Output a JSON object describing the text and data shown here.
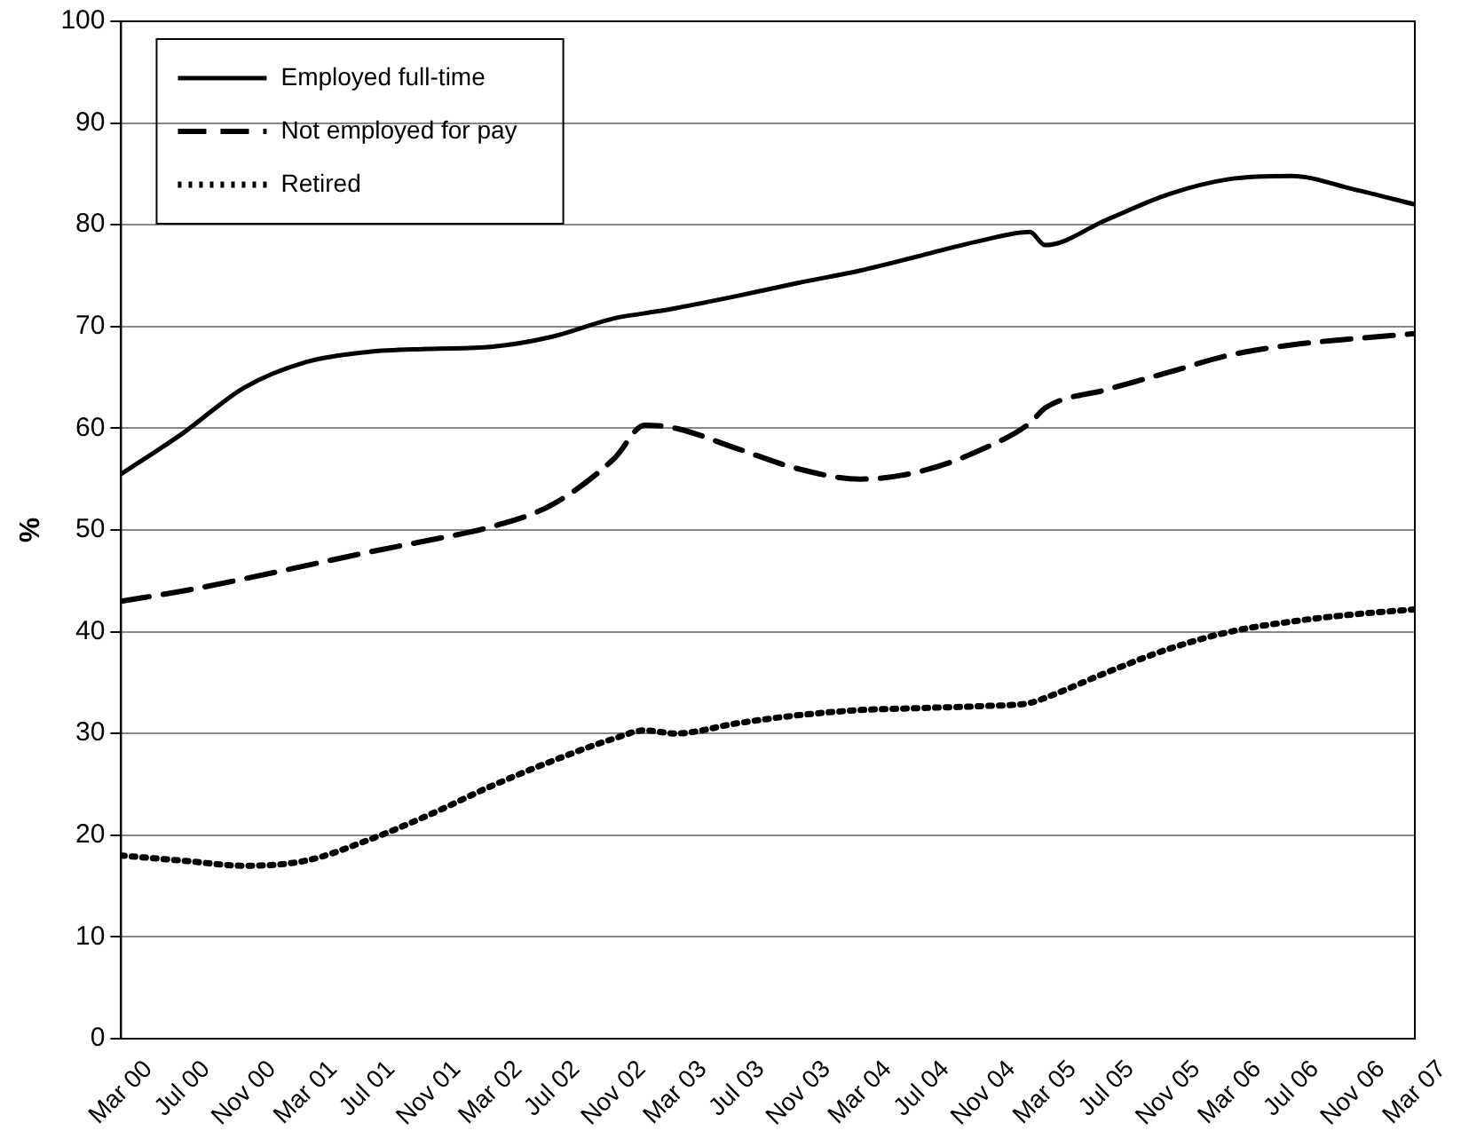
{
  "chart_data": {
    "type": "line",
    "ylabel": "%",
    "ylim": [
      0,
      100
    ],
    "yticks": [
      0,
      10,
      20,
      30,
      40,
      50,
      60,
      70,
      80,
      90,
      100
    ],
    "xlim": [
      "2000-03",
      "2007-03"
    ],
    "xticks": [
      {
        "value": "2000-03",
        "label": "Mar 00"
      },
      {
        "value": "2000-07",
        "label": "Jul 00"
      },
      {
        "value": "2000-11",
        "label": "Nov 00"
      },
      {
        "value": "2001-03",
        "label": "Mar 01"
      },
      {
        "value": "2001-07",
        "label": "Jul 01"
      },
      {
        "value": "2001-11",
        "label": "Nov 01"
      },
      {
        "value": "2002-03",
        "label": "Mar 02"
      },
      {
        "value": "2002-07",
        "label": "Jul 02"
      },
      {
        "value": "2002-11",
        "label": "Nov 02"
      },
      {
        "value": "2003-03",
        "label": "Mar 03"
      },
      {
        "value": "2003-07",
        "label": "Jul 03"
      },
      {
        "value": "2003-11",
        "label": "Nov 03"
      },
      {
        "value": "2004-03",
        "label": "Mar 04"
      },
      {
        "value": "2004-07",
        "label": "Jul 04"
      },
      {
        "value": "2004-11",
        "label": "Nov 04"
      },
      {
        "value": "2005-03",
        "label": "Mar 05"
      },
      {
        "value": "2005-07",
        "label": "Jul 05"
      },
      {
        "value": "2005-11",
        "label": "Nov 05"
      },
      {
        "value": "2006-03",
        "label": "Mar 06"
      },
      {
        "value": "2006-07",
        "label": "Jul 06"
      },
      {
        "value": "2006-11",
        "label": "Nov 06"
      },
      {
        "value": "2007-03",
        "label": "Mar 07"
      }
    ],
    "x": [
      "2000-03",
      "2000-07",
      "2000-11",
      "2001-03",
      "2001-07",
      "2001-11",
      "2002-03",
      "2002-07",
      "2002-11",
      "2003-01",
      "2003-03",
      "2003-07",
      "2003-11",
      "2004-03",
      "2004-07",
      "2004-11",
      "2005-02",
      "2005-03",
      "2005-07",
      "2005-11",
      "2006-03",
      "2006-07",
      "2006-11",
      "2007-03"
    ],
    "grid": "y",
    "legend": "top left",
    "marker": "none",
    "series": [
      {
        "name": "Employed full-time",
        "color": "#000000",
        "line_style": "solid",
        "values": [
          55.5,
          59.5,
          64,
          66.5,
          67.5,
          67.8,
          68,
          69,
          70.8,
          71.3,
          71.8,
          73,
          74.3,
          75.5,
          77,
          78.5,
          79.3,
          78,
          80.5,
          83,
          84.5,
          84.8,
          83.5,
          82
        ]
      },
      {
        "name": "Not employed for pay",
        "color": "#000000",
        "line_style": "dashed",
        "values": [
          43,
          44,
          45.2,
          46.5,
          47.8,
          49,
          50.3,
          52.5,
          57,
          60.3,
          60,
          58,
          56,
          55,
          55.8,
          58,
          60.5,
          62,
          63.8,
          65.5,
          67.2,
          68.2,
          68.8,
          69.3
        ]
      },
      {
        "name": "Retired",
        "color": "#000000",
        "line_style": "dotted",
        "values": [
          18,
          17.5,
          17,
          17.5,
          19.5,
          22,
          24.8,
          27.3,
          29.5,
          30.3,
          30,
          31,
          31.8,
          32.3,
          32.5,
          32.7,
          33,
          33.5,
          36,
          38.3,
          40,
          41,
          41.7,
          42.2
        ]
      }
    ]
  }
}
